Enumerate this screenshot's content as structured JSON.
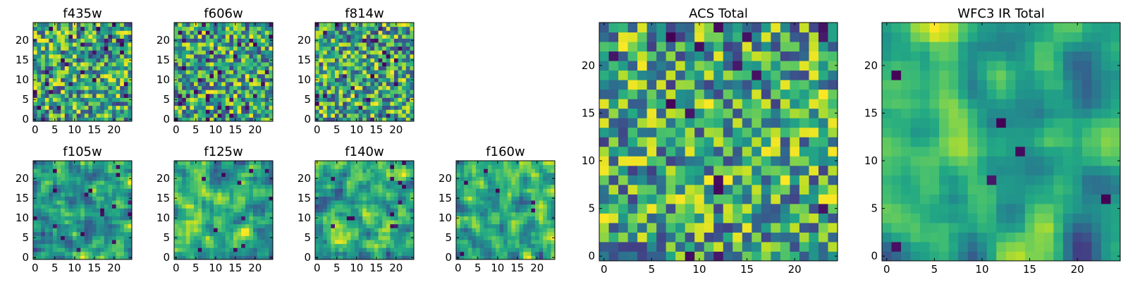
{
  "chart_data": [
    {
      "type": "heatmap",
      "title": "f435w",
      "size": 25,
      "colormap": "viridis",
      "seed": 11,
      "smooth": 0,
      "dark_fraction": 0.05,
      "xticks": [
        0,
        5,
        10,
        15,
        20
      ],
      "yticks": [
        0,
        5,
        10,
        15,
        20
      ],
      "xlim": [
        0,
        25
      ],
      "ylim": [
        0,
        25
      ]
    },
    {
      "type": "heatmap",
      "title": "f606w",
      "size": 25,
      "colormap": "viridis",
      "seed": 23,
      "smooth": 0,
      "dark_fraction": 0.05,
      "xticks": [
        0,
        5,
        10,
        15,
        20
      ],
      "yticks": [
        0,
        5,
        10,
        15,
        20
      ],
      "xlim": [
        0,
        25
      ],
      "ylim": [
        0,
        25
      ]
    },
    {
      "type": "heatmap",
      "title": "f814w",
      "size": 25,
      "colormap": "viridis",
      "seed": 37,
      "smooth": 0,
      "dark_fraction": 0.04,
      "xticks": [
        0,
        5,
        10,
        15,
        20
      ],
      "yticks": [
        0,
        5,
        10,
        15,
        20
      ],
      "xlim": [
        0,
        25
      ],
      "ylim": [
        0,
        25
      ]
    },
    {
      "type": "heatmap",
      "title": "f105w",
      "size": 25,
      "colormap": "viridis",
      "seed": 41,
      "smooth": 1,
      "dark_fraction": 0.02,
      "xticks": [
        0,
        5,
        10,
        15,
        20
      ],
      "yticks": [
        0,
        5,
        10,
        15,
        20
      ],
      "xlim": [
        0,
        25
      ],
      "ylim": [
        0,
        25
      ]
    },
    {
      "type": "heatmap",
      "title": "f125w",
      "size": 25,
      "colormap": "viridis",
      "seed": 53,
      "smooth": 1,
      "dark_fraction": 0.02,
      "xticks": [
        0,
        5,
        10,
        15,
        20
      ],
      "yticks": [
        0,
        5,
        10,
        15,
        20
      ],
      "xlim": [
        0,
        25
      ],
      "ylim": [
        0,
        25
      ]
    },
    {
      "type": "heatmap",
      "title": "f140w",
      "size": 25,
      "colormap": "viridis",
      "seed": 67,
      "smooth": 1,
      "dark_fraction": 0.02,
      "xticks": [
        0,
        5,
        10,
        15,
        20
      ],
      "yticks": [
        0,
        5,
        10,
        15,
        20
      ],
      "xlim": [
        0,
        25
      ],
      "ylim": [
        0,
        25
      ]
    },
    {
      "type": "heatmap",
      "title": "f160w",
      "size": 25,
      "colormap": "viridis",
      "seed": 79,
      "smooth": 1,
      "dark_fraction": 0.02,
      "xticks": [
        0,
        5,
        10,
        15,
        20
      ],
      "yticks": [
        0,
        5,
        10,
        15,
        20
      ],
      "xlim": [
        0,
        25
      ],
      "ylim": [
        0,
        25
      ]
    },
    {
      "type": "heatmap",
      "title": "ACS Total",
      "size": 25,
      "colormap": "viridis",
      "seed": 97,
      "smooth": 0,
      "dark_fraction": 0.03,
      "xticks": [
        0,
        5,
        10,
        15,
        20
      ],
      "yticks": [
        0,
        5,
        10,
        15,
        20
      ],
      "xlim": [
        0,
        25
      ],
      "ylim": [
        0,
        25
      ]
    },
    {
      "type": "heatmap",
      "title": "WFC3 IR Total",
      "size": 25,
      "colormap": "viridis",
      "seed": 131,
      "smooth": 2,
      "dark_fraction": 0.02,
      "xticks": [
        0,
        5,
        10,
        15,
        20
      ],
      "yticks": [
        0,
        5,
        10,
        15,
        20
      ],
      "xlim": [
        0,
        25
      ],
      "ylim": [
        0,
        25
      ]
    }
  ]
}
